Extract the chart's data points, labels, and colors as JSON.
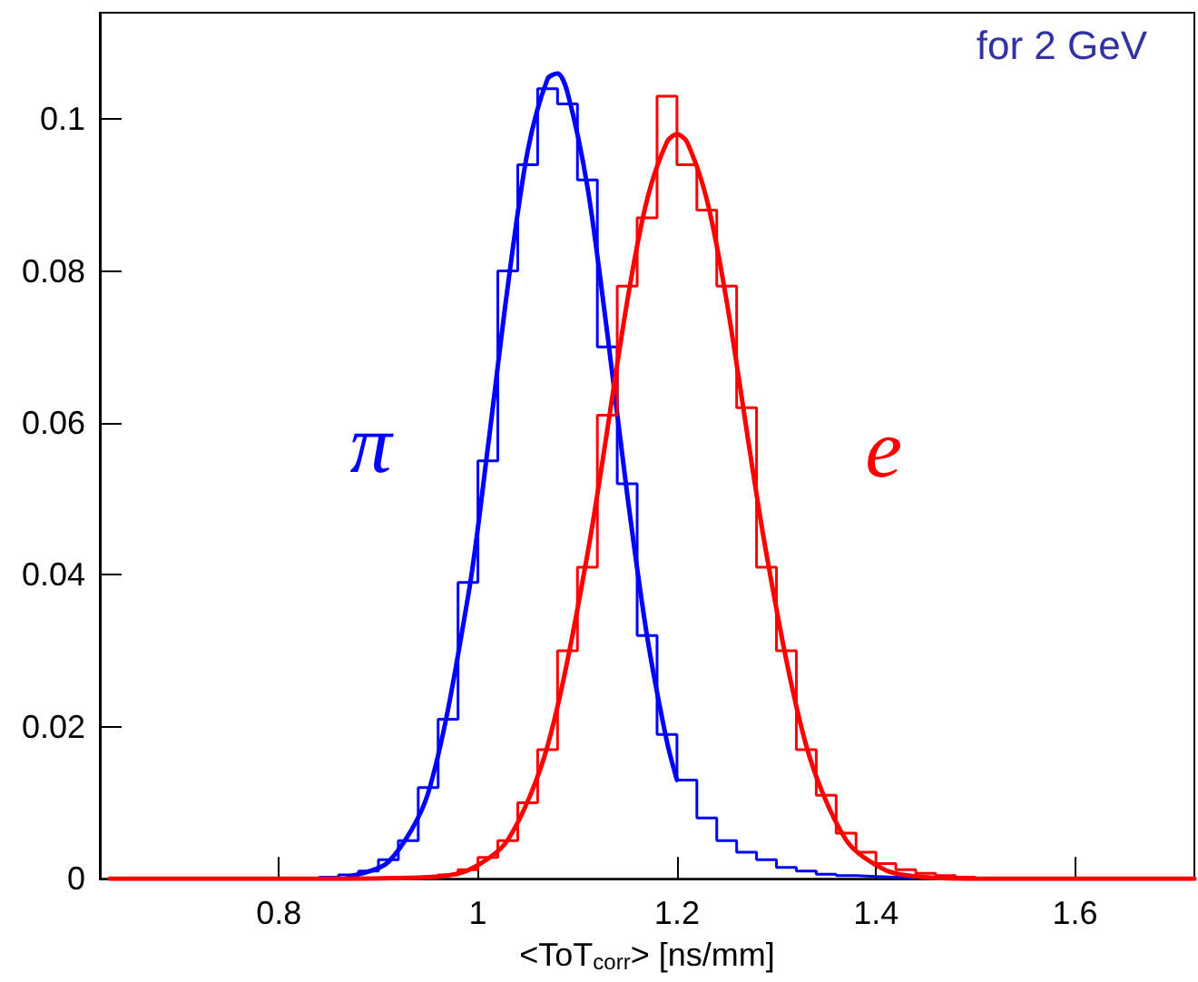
{
  "chart_data": {
    "type": "histogram",
    "xlabel": "<ToT$_{corr}$> [ns/mm]",
    "xlim": [
      0.62,
      1.72
    ],
    "ylim": [
      0,
      0.114
    ],
    "xticks": [
      0.8,
      1,
      1.2,
      1.4,
      1.6
    ],
    "yticks": [
      0,
      0.02,
      0.04,
      0.06,
      0.08,
      0.1
    ],
    "annotations": [
      "for 2 GeV"
    ],
    "series": [
      {
        "name": "π",
        "color": "#0000ff",
        "bins": [
          0.84,
          0.86,
          0.88,
          0.9,
          0.92,
          0.94,
          0.96,
          0.98,
          1.0,
          1.02,
          1.04,
          1.06,
          1.08,
          1.1,
          1.12,
          1.14,
          1.16,
          1.18,
          1.2,
          1.22,
          1.24,
          1.26,
          1.28,
          1.3,
          1.32,
          1.34,
          1.36,
          1.38,
          1.4,
          1.42,
          1.44
        ],
        "values": [
          0.0002,
          0.0005,
          0.001,
          0.0025,
          0.005,
          0.012,
          0.021,
          0.039,
          0.055,
          0.08,
          0.094,
          0.104,
          0.102,
          0.092,
          0.07,
          0.052,
          0.032,
          0.019,
          0.013,
          0.008,
          0.005,
          0.0035,
          0.0025,
          0.0015,
          0.001,
          0.0006,
          0.0004,
          0.0003,
          0.0002,
          0.0001
        ]
      },
      {
        "type": "line",
        "color": "#0000ff",
        "x": [
          0.87,
          0.91,
          0.95,
          0.99,
          1.01,
          1.03,
          1.05,
          1.07,
          1.08,
          1.09,
          1.11,
          1.13,
          1.15,
          1.17,
          1.19,
          1.2
        ],
        "values": [
          0.0003,
          0.0022,
          0.0113,
          0.0371,
          0.0568,
          0.078,
          0.0958,
          0.1053,
          0.106,
          0.1035,
          0.0911,
          0.0718,
          0.0506,
          0.0319,
          0.018,
          0.013
        ]
      },
      {
        "name": "e",
        "color": "#ff0000",
        "bins": [
          0.9,
          0.92,
          0.94,
          0.96,
          0.98,
          1.0,
          1.02,
          1.04,
          1.06,
          1.08,
          1.1,
          1.12,
          1.14,
          1.16,
          1.18,
          1.2,
          1.22,
          1.24,
          1.26,
          1.28,
          1.3,
          1.32,
          1.34,
          1.36,
          1.38,
          1.4,
          1.42,
          1.44,
          1.46,
          1.48,
          1.5
        ],
        "values": [
          0.0001,
          0.0002,
          0.0003,
          0.0005,
          0.0012,
          0.0028,
          0.005,
          0.01,
          0.017,
          0.03,
          0.041,
          0.061,
          0.078,
          0.087,
          0.103,
          0.094,
          0.088,
          0.078,
          0.062,
          0.041,
          0.03,
          0.017,
          0.011,
          0.006,
          0.0035,
          0.002,
          0.0012,
          0.0007,
          0.0004,
          0.0002
        ]
      },
      {
        "type": "line",
        "color": "#ff0000",
        "x": [
          0.63,
          0.85,
          0.95,
          0.99,
          1.03,
          1.07,
          1.11,
          1.15,
          1.17,
          1.19,
          1.2,
          1.21,
          1.23,
          1.25,
          1.29,
          1.33,
          1.37,
          1.41,
          1.45,
          1.5,
          1.6,
          1.72
        ],
        "values": [
          0,
          0,
          0.0002,
          0.0011,
          0.0051,
          0.0175,
          0.0427,
          0.076,
          0.0894,
          0.097,
          0.098,
          0.097,
          0.0894,
          0.076,
          0.0427,
          0.0175,
          0.0051,
          0.0011,
          0.0002,
          0,
          0,
          0
        ]
      }
    ]
  }
}
